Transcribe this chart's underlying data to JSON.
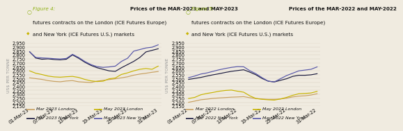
{
  "fig4": {
    "title_num": "Figure 4:",
    "title_line1": "Prices of the MAR-2023 and MAY-2023",
    "title_line2": "futures contracts on the London (ICE Futures Europe)",
    "title_line3": "and New York (ICE Futures U.S.) markets",
    "xlabel_ticks": [
      "01-Mar-23",
      "07-Mar-23",
      "13-Mar-23",
      "19-Mar-23",
      "25-Mar-23",
      "31-Mar-23"
    ],
    "ylim": [
      2150,
      2950
    ],
    "yticks": [
      2150,
      2200,
      2250,
      2300,
      2350,
      2400,
      2450,
      2500,
      2550,
      2600,
      2650,
      2700,
      2750,
      2800,
      2850,
      2900,
      2950
    ],
    "mar_london": [
      2510,
      2500,
      2490,
      2475,
      2465,
      2460,
      2470,
      2475,
      2460,
      2455,
      2450,
      2468,
      2478,
      2488,
      2498,
      2510,
      2523,
      2543,
      2558,
      2568,
      2580,
      2590
    ],
    "may_london": [
      2598,
      2568,
      2552,
      2532,
      2522,
      2518,
      2524,
      2528,
      2515,
      2490,
      2472,
      2463,
      2468,
      2498,
      2508,
      2553,
      2573,
      2598,
      2618,
      2628,
      2618,
      2658
    ],
    "mar_newyork": [
      2840,
      2760,
      2745,
      2750,
      2742,
      2738,
      2745,
      2800,
      2758,
      2708,
      2668,
      2638,
      2618,
      2598,
      2592,
      2638,
      2678,
      2718,
      2768,
      2838,
      2858,
      2878
    ],
    "may_newyork": [
      2838,
      2768,
      2762,
      2758,
      2752,
      2748,
      2755,
      2808,
      2768,
      2718,
      2678,
      2652,
      2642,
      2648,
      2658,
      2718,
      2758,
      2848,
      2868,
      2888,
      2898,
      2928
    ],
    "color_mar_london": "#c8a060",
    "color_may_london": "#c8b400",
    "color_mar_newyork": "#1a1a3e",
    "color_may_newyork": "#5555a8",
    "legend": [
      "Mar 2023 London",
      "May 2023 London",
      "Mar 2023 New York",
      "May 2023 New York"
    ]
  },
  "fig5": {
    "title_num": "Figure 5:",
    "title_line1": "Prices of the MAR-2022 and MAY-2022",
    "title_line2": "futures contracts on the London (ICE Futures Europe)",
    "title_line3": "and New York (ICE Futures U.S.) markets",
    "xlabel_ticks": [
      "01-Mar-22",
      "07-Mar-22",
      "13-Mar-22",
      "19-Mar-22",
      "25-Mar-22",
      "31-Mar-22"
    ],
    "ylim": [
      2150,
      2950
    ],
    "yticks": [
      2150,
      2200,
      2250,
      2300,
      2350,
      2400,
      2450,
      2500,
      2550,
      2600,
      2650,
      2700,
      2750,
      2800,
      2850,
      2900,
      2950
    ],
    "mar_london": [
      2200,
      2215,
      2232,
      2240,
      2250,
      2255,
      2260,
      2265,
      2268,
      2272,
      2258,
      2248,
      2242,
      2238,
      2238,
      2242,
      2252,
      2268,
      2278,
      2282,
      2292,
      2308
    ],
    "may_london": [
      2248,
      2262,
      2295,
      2312,
      2325,
      2340,
      2350,
      2355,
      2340,
      2328,
      2282,
      2248,
      2238,
      2232,
      2228,
      2242,
      2262,
      2288,
      2308,
      2312,
      2318,
      2338
    ],
    "mar_newyork": [
      2490,
      2502,
      2515,
      2532,
      2548,
      2562,
      2578,
      2592,
      2602,
      2612,
      2582,
      2548,
      2502,
      2468,
      2458,
      2478,
      2498,
      2528,
      2542,
      2542,
      2548,
      2562
    ],
    "may_newyork": [
      2512,
      2532,
      2558,
      2572,
      2592,
      2612,
      2628,
      2642,
      2652,
      2650,
      2600,
      2562,
      2512,
      2468,
      2458,
      2498,
      2538,
      2568,
      2598,
      2608,
      2618,
      2648
    ],
    "color_mar_london": "#c8a060",
    "color_may_london": "#c8b400",
    "color_mar_newyork": "#1a1a3e",
    "color_may_newyork": "#5555a8",
    "legend": [
      "Mar 2022 London",
      "May 2022 London",
      "Mar 2022 New York",
      "May 2022 New York"
    ]
  },
  "ylabel": "US$ PER TONNE",
  "bg_color": "#f0ebe0",
  "title_color_num": "#8db010",
  "title_color_text": "#111111",
  "marker_circle_color": "#8db010",
  "marker_diamond_color": "#c8b400",
  "line_width": 0.85,
  "tick_fontsize": 4.8,
  "legend_fontsize": 4.5,
  "title_fontsize": 5.2,
  "ylabel_fontsize": 4.5,
  "hatch_color": "#c8c0a8"
}
